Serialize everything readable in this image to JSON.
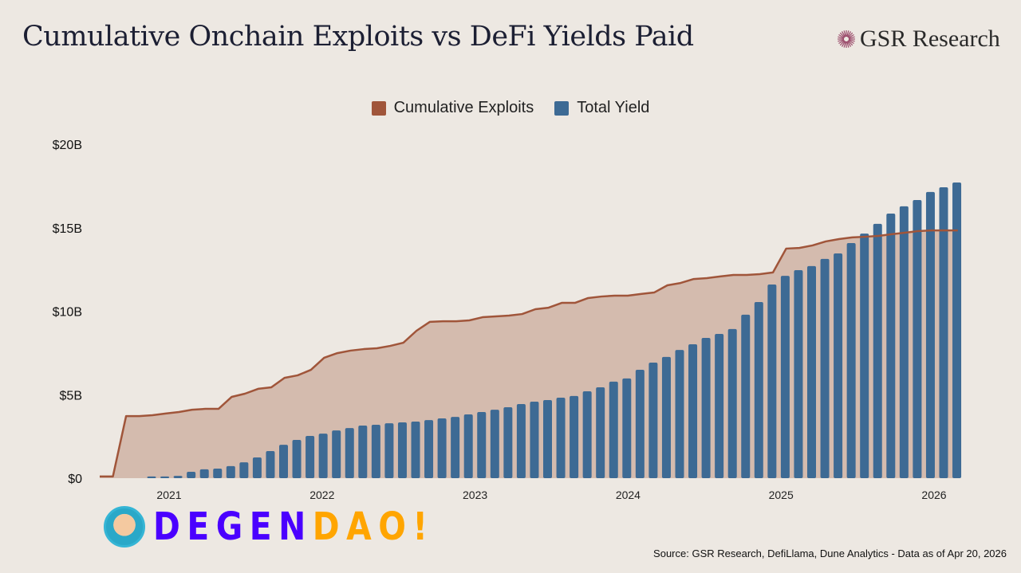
{
  "header": {
    "title": "Cumulative Onchain Exploits vs DeFi Yields Paid",
    "brand": "GSR Research"
  },
  "footer": {
    "source": "Source: GSR Research, DefiLlama, Dune Analytics - Data as of Apr 20, 2026"
  },
  "watermark": {
    "text_part1": "DEGEN",
    "text_part2": "DAO!",
    "color1": "#4a00ff",
    "color2": "#ffa500"
  },
  "chart_data": {
    "type": "bar+area",
    "title": "Cumulative Onchain Exploits vs DeFi Yields Paid",
    "legend_position": "top-center",
    "colors": {
      "exploits_line": "#a0553a",
      "exploits_fill": "#d4bbae",
      "yield_bar": "#3d6a94",
      "background": "#ede8e2"
    },
    "y_ticks": [
      "$0",
      "$5B",
      "$10B",
      "$15B",
      "$20B"
    ],
    "ylim": [
      0,
      20
    ],
    "y_unit": "USD billions",
    "x_ticks": [
      "2021",
      "2022",
      "2023",
      "2024",
      "2025",
      "2026"
    ],
    "grid": false,
    "series": [
      {
        "name": "Cumulative Exploits",
        "kind": "area-line",
        "values": [
          0.1,
          0.1,
          3.72,
          3.72,
          3.77,
          3.87,
          3.96,
          4.1,
          4.15,
          4.15,
          4.87,
          5.06,
          5.35,
          5.44,
          6.01,
          6.16,
          6.49,
          7.21,
          7.49,
          7.64,
          7.73,
          7.78,
          7.92,
          8.11,
          8.83,
          9.36,
          9.4,
          9.4,
          9.45,
          9.64,
          9.69,
          9.74,
          9.83,
          10.12,
          10.21,
          10.5,
          10.5,
          10.79,
          10.88,
          10.93,
          10.93,
          11.03,
          11.12,
          11.55,
          11.69,
          11.93,
          11.98,
          12.08,
          12.17,
          12.17,
          12.22,
          12.32,
          13.75,
          13.79,
          13.94,
          14.18,
          14.32,
          14.42,
          14.46,
          14.51,
          14.61,
          14.7,
          14.8,
          14.84,
          14.84,
          14.84
        ]
      },
      {
        "name": "Total Yield",
        "kind": "bar",
        "values": [
          0.1,
          0.1,
          0.14,
          0.38,
          0.53,
          0.57,
          0.72,
          0.95,
          1.24,
          1.62,
          2.0,
          2.29,
          2.53,
          2.67,
          2.86,
          3.0,
          3.15,
          3.2,
          3.29,
          3.34,
          3.39,
          3.48,
          3.58,
          3.67,
          3.82,
          3.96,
          4.1,
          4.25,
          4.44,
          4.58,
          4.68,
          4.82,
          4.92,
          5.2,
          5.44,
          5.78,
          5.97,
          6.49,
          6.92,
          7.26,
          7.68,
          8.02,
          8.4,
          8.64,
          8.93,
          9.79,
          10.55,
          11.6,
          12.12,
          12.46,
          12.7,
          13.13,
          13.46,
          14.08,
          14.65,
          15.23,
          15.85,
          16.28,
          16.66,
          17.14,
          17.42,
          17.71
        ]
      }
    ]
  }
}
